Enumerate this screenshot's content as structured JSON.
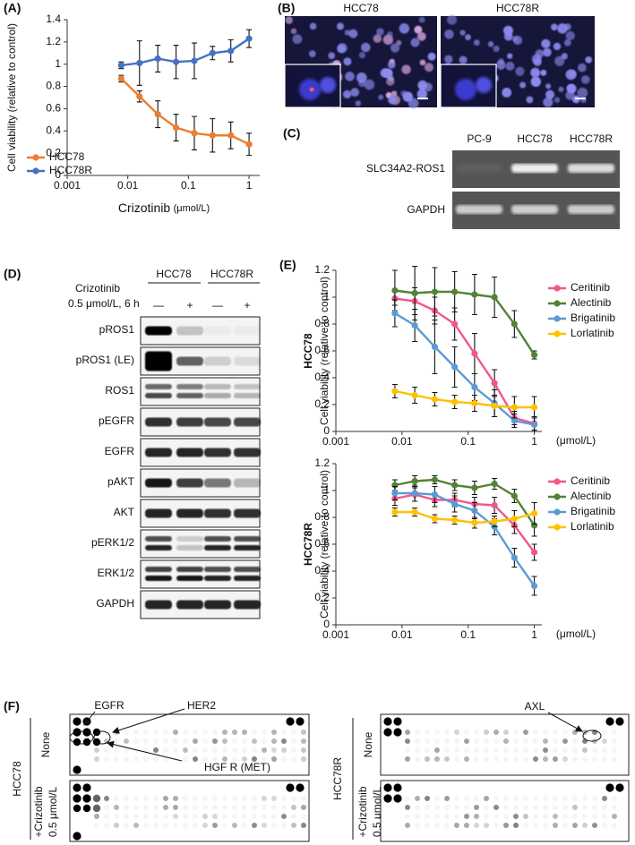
{
  "panel_labels": [
    "(A)",
    "(B)",
    "(C)",
    "(D)",
    "(E)",
    "(F)"
  ],
  "chart_data": [
    {
      "type": "line",
      "y_label": "Cell viability (relative to control)",
      "x_label": "Crizotinib",
      "x_unit": "(μmol/L)",
      "xlog": true,
      "xlim": [
        0.001,
        1.5
      ],
      "ylim": [
        0,
        1.4
      ],
      "xticks": [
        0.001,
        0.01,
        0.1,
        1
      ],
      "yticks": [
        0,
        0.2,
        0.4,
        0.6,
        0.8,
        1,
        1.2,
        1.4
      ],
      "legend": "lower left",
      "x": [
        0.0078,
        0.0156,
        0.03125,
        0.0625,
        0.125,
        0.25,
        0.5,
        1
      ],
      "series": [
        {
          "name": "HCC78",
          "color": "#ed7d31",
          "values": [
            0.87,
            0.71,
            0.55,
            0.43,
            0.38,
            0.36,
            0.36,
            0.28
          ],
          "errors": [
            0.03,
            0.05,
            0.12,
            0.12,
            0.15,
            0.15,
            0.12,
            0.1
          ]
        },
        {
          "name": "HCC78R",
          "color": "#4472c4",
          "values": [
            0.99,
            1.01,
            1.05,
            1.02,
            1.03,
            1.1,
            1.12,
            1.23
          ],
          "errors": [
            0.03,
            0.2,
            0.12,
            0.15,
            0.16,
            0.06,
            0.1,
            0.08
          ]
        }
      ]
    },
    {
      "type": "line",
      "side_label": "HCC78",
      "y_label": "Cell viability (relative to control)",
      "x_unit": "(μmol/L)",
      "xlog": true,
      "xlim": [
        0.001,
        1.3
      ],
      "ylim": [
        0,
        1.2
      ],
      "xticks": [
        0.001,
        0.01,
        0.1,
        1
      ],
      "yticks": [
        0,
        0.2,
        0.4,
        0.6,
        0.8,
        1,
        1.2
      ],
      "legend": "right",
      "x": [
        0.0078,
        0.0156,
        0.03125,
        0.0625,
        0.125,
        0.25,
        0.5,
        1
      ],
      "series": [
        {
          "name": "Ceritinib",
          "color": "#f0578a",
          "values": [
            0.99,
            0.97,
            0.9,
            0.8,
            0.58,
            0.36,
            0.1,
            0.06
          ],
          "errors": [
            0.05,
            0.1,
            0.1,
            0.12,
            0.15,
            0.1,
            0.05,
            0.05
          ]
        },
        {
          "name": "Alectinib",
          "color": "#548235",
          "values": [
            1.05,
            1.03,
            1.04,
            1.04,
            1.02,
            1.0,
            0.8,
            0.57
          ],
          "errors": [
            0.15,
            0.2,
            0.18,
            0.15,
            0.15,
            0.15,
            0.1,
            0.03
          ]
        },
        {
          "name": "Brigatinib",
          "color": "#5b9bd5",
          "values": [
            0.88,
            0.79,
            0.63,
            0.48,
            0.33,
            0.21,
            0.08,
            0.05
          ],
          "errors": [
            0.1,
            0.12,
            0.2,
            0.15,
            0.1,
            0.1,
            0.05,
            0.05
          ]
        },
        {
          "name": "Lorlatinib",
          "color": "#ffc000",
          "values": [
            0.3,
            0.27,
            0.24,
            0.22,
            0.21,
            0.19,
            0.18,
            0.18
          ],
          "errors": [
            0.05,
            0.06,
            0.05,
            0.05,
            0.06,
            0.08,
            0.08,
            0.08
          ]
        }
      ]
    },
    {
      "type": "line",
      "side_label": "HCC78R",
      "y_label": "Cell viability (relative to control)",
      "x_unit": "(μmol/L)",
      "xlog": true,
      "xlim": [
        0.001,
        1.3
      ],
      "ylim": [
        0,
        1.2
      ],
      "xticks": [
        0.001,
        0.01,
        0.1,
        1
      ],
      "yticks": [
        0,
        0.2,
        0.4,
        0.6,
        0.8,
        1,
        1.2
      ],
      "legend": "right",
      "x": [
        0.0078,
        0.0156,
        0.03125,
        0.0625,
        0.125,
        0.25,
        0.5,
        1
      ],
      "series": [
        {
          "name": "Ceritinib",
          "color": "#f0578a",
          "values": [
            0.94,
            0.97,
            0.93,
            0.93,
            0.9,
            0.89,
            0.74,
            0.54
          ],
          "errors": [
            0.05,
            0.05,
            0.05,
            0.05,
            0.05,
            0.06,
            0.06,
            0.06
          ]
        },
        {
          "name": "Alectinib",
          "color": "#548235",
          "values": [
            1.04,
            1.07,
            1.08,
            1.04,
            1.02,
            1.05,
            0.96,
            0.74
          ],
          "errors": [
            0.04,
            0.04,
            0.03,
            0.04,
            0.05,
            0.04,
            0.05,
            0.08
          ]
        },
        {
          "name": "Brigatinib",
          "color": "#5b9bd5",
          "values": [
            0.98,
            0.98,
            0.97,
            0.9,
            0.85,
            0.73,
            0.5,
            0.29
          ],
          "errors": [
            0.05,
            0.06,
            0.06,
            0.06,
            0.06,
            0.06,
            0.07,
            0.07
          ]
        },
        {
          "name": "Lorlatinib",
          "color": "#ffc000",
          "values": [
            0.84,
            0.84,
            0.79,
            0.78,
            0.76,
            0.77,
            0.79,
            0.83
          ],
          "errors": [
            0.03,
            0.03,
            0.03,
            0.03,
            0.04,
            0.04,
            0.06,
            0.08
          ]
        }
      ]
    }
  ],
  "panel_b": {
    "titles": [
      "HCC78",
      "HCC78R"
    ]
  },
  "panel_c": {
    "lanes": [
      "PC-9",
      "HCC78",
      "HCC78R"
    ],
    "rows": [
      "SLC34A2-ROS1",
      "GAPDH"
    ]
  },
  "panel_d": {
    "treatment": "Crizotinib",
    "dose": "0.5 μmol/L, 6 h",
    "cell_lines": [
      "HCC78",
      "HCC78R"
    ],
    "lanes": [
      "—",
      "+",
      "—",
      "+"
    ],
    "rows": [
      "pROS1",
      "pROS1 (LE)",
      "ROS1",
      "pEGFR",
      "EGFR",
      "pAKT",
      "AKT",
      "pERK1/2",
      "ERK1/2",
      "GAPDH"
    ]
  },
  "panel_f": {
    "cell_lines": [
      "HCC78",
      "HCC78R"
    ],
    "conditions": [
      "None",
      "+Crizotinib",
      "0.5 μmol/L"
    ],
    "callouts": [
      "EGFR",
      "HER2",
      "HGF R (MET)",
      "AXL"
    ]
  }
}
